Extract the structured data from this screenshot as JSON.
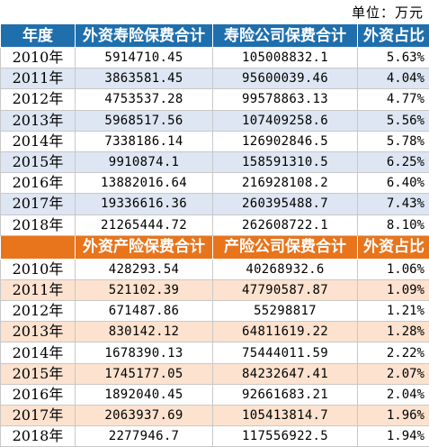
{
  "unit_label": "单位：万元",
  "life": {
    "headers": [
      "年度",
      "外资寿险保费合计",
      "寿险公司保费合计",
      "外资占比"
    ],
    "rows": [
      {
        "year": "2010年",
        "foreign": "5914710.45",
        "total": "105008832.1",
        "share": "5.63%"
      },
      {
        "year": "2011年",
        "foreign": "3863581.45",
        "total": "95600039.46",
        "share": "4.04%"
      },
      {
        "year": "2012年",
        "foreign": "4753537.28",
        "total": "99578863.13",
        "share": "4.77%"
      },
      {
        "year": "2013年",
        "foreign": "5968517.56",
        "total": "107409258.6",
        "share": "5.56%"
      },
      {
        "year": "2014年",
        "foreign": "7338186.14",
        "total": "126902846.5",
        "share": "5.78%"
      },
      {
        "year": "2015年",
        "foreign": "9910874.1",
        "total": "158591310.5",
        "share": "6.25%"
      },
      {
        "year": "2016年",
        "foreign": "13882016.64",
        "total": "216928108.2",
        "share": "6.40%"
      },
      {
        "year": "2017年",
        "foreign": "19336616.36",
        "total": "260395488.7",
        "share": "7.43%"
      },
      {
        "year": "2018年",
        "foreign": "21265444.72",
        "total": "262608722.1",
        "share": "8.10%"
      }
    ]
  },
  "property": {
    "headers": [
      "",
      "外资产险保费合计",
      "产险公司保费合计",
      "外资占比"
    ],
    "rows": [
      {
        "year": "2010年",
        "foreign": "428293.54",
        "total": "40268932.6",
        "share": "1.06%"
      },
      {
        "year": "2011年",
        "foreign": "521102.39",
        "total": "47790587.87",
        "share": "1.09%"
      },
      {
        "year": "2012年",
        "foreign": "671487.86",
        "total": "55298817",
        "share": "1.21%"
      },
      {
        "year": "2013年",
        "foreign": "830142.12",
        "total": "64811619.22",
        "share": "1.28%"
      },
      {
        "year": "2014年",
        "foreign": "1678390.13",
        "total": "75444011.59",
        "share": "2.22%"
      },
      {
        "year": "2015年",
        "foreign": "1745177.05",
        "total": "84232647.41",
        "share": "2.07%"
      },
      {
        "year": "2016年",
        "foreign": "1892040.45",
        "total": "92661683.21",
        "share": "2.04%"
      },
      {
        "year": "2017年",
        "foreign": "2063937.69",
        "total": "105413814.7",
        "share": "1.96%"
      },
      {
        "year": "2018年",
        "foreign": "2277946.7",
        "total": "117556922.5",
        "share": "1.94%"
      }
    ]
  },
  "colors": {
    "life_header_bg": "#1f6fad",
    "property_header_bg": "#e8741b",
    "life_shade": "#dde6f2",
    "property_shade": "#fce2cf"
  }
}
